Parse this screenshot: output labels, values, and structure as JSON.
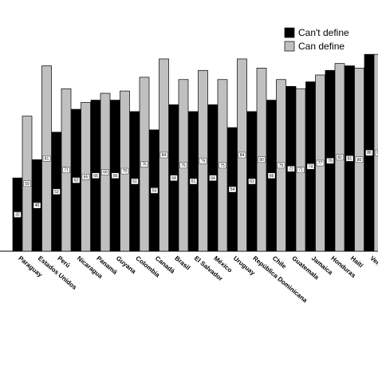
{
  "chart_data": {
    "type": "bar",
    "categories": [
      "Paraguay",
      "Estados Unidos",
      "Perú",
      "Nicaragua",
      "Panamá",
      "Guyana",
      "Colombia",
      "Canadá",
      "Brasil",
      "El Salvador",
      "México",
      "Uruguay",
      "República Dominicana",
      "Chile",
      "Guatemala",
      "Jamaica",
      "Honduras",
      "Haití",
      "Venezuela"
    ],
    "series": [
      {
        "name": "Can't define",
        "color": "#000000",
        "values": [
          32,
          40,
          52,
          62,
          66,
          66,
          61,
          53,
          64,
          61,
          64,
          54,
          61,
          66,
          72,
          74,
          79,
          81,
          86
        ]
      },
      {
        "name": "Can define",
        "color": "#c0c0c0",
        "values": [
          59,
          81,
          71,
          65,
          69,
          70,
          76,
          84,
          75,
          79,
          75,
          84,
          80,
          75,
          71,
          77,
          82,
          80,
          86
        ]
      }
    ],
    "legend": "upper right"
  }
}
